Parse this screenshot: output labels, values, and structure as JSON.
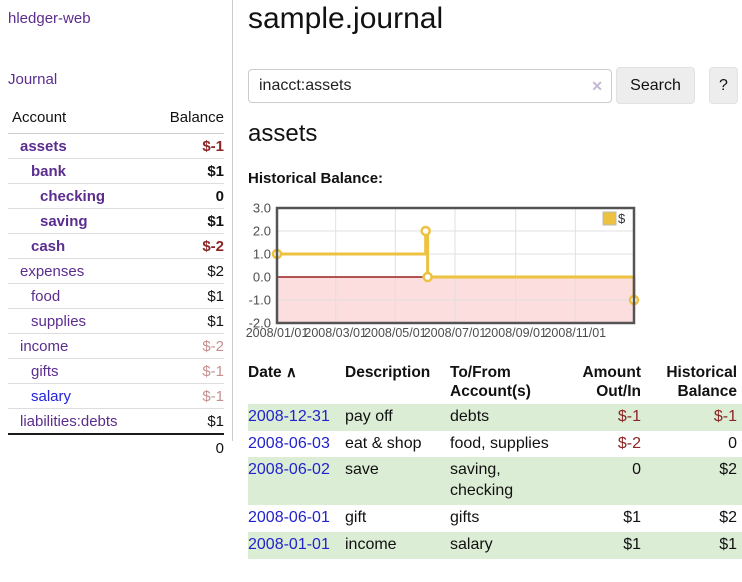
{
  "app": {
    "title": "hledger-web"
  },
  "sidebar": {
    "journal_link": "Journal",
    "table": {
      "account_header": "Account",
      "balance_header": "Balance",
      "rows": [
        {
          "account": "assets",
          "depth": 1,
          "bold": true,
          "balance": "$-1",
          "balance_style": "neg"
        },
        {
          "account": "bank",
          "depth": 2,
          "bold": true,
          "balance": "$1",
          "balance_style": "pos"
        },
        {
          "account": "checking",
          "depth": 3,
          "bold": true,
          "balance": "0",
          "balance_style": "pos"
        },
        {
          "account": "saving",
          "depth": 3,
          "bold": true,
          "balance": "$1",
          "balance_style": "pos"
        },
        {
          "account": "cash",
          "depth": 2,
          "bold": true,
          "balance": "$-2",
          "balance_style": "neg"
        },
        {
          "account": "expenses",
          "depth": 1,
          "bold": false,
          "balance": "$2",
          "balance_style": "pos"
        },
        {
          "account": "food",
          "depth": 2,
          "bold": false,
          "balance": "$1",
          "balance_style": "pos"
        },
        {
          "account": "supplies",
          "depth": 2,
          "bold": false,
          "balance": "$1",
          "balance_style": "pos"
        },
        {
          "account": "income",
          "depth": 1,
          "bold": false,
          "balance": "$-2",
          "balance_style": "neg-faded"
        },
        {
          "account": "gifts",
          "depth": 2,
          "bold": false,
          "balance": "$-1",
          "balance_style": "neg-faded"
        },
        {
          "account": "salary",
          "depth": 2,
          "bold": false,
          "balance": "$-1",
          "balance_style": "neg-faded"
        },
        {
          "account": "liabilities:debts",
          "depth": 1,
          "bold": false,
          "balance": "$1",
          "balance_style": "pos"
        }
      ],
      "total": "0"
    }
  },
  "main": {
    "title": "sample.journal",
    "search": {
      "value": "inacct:assets",
      "clear_icon": "✕",
      "button": "Search",
      "help_button": "?"
    },
    "account_heading": "assets",
    "chart_label": "Historical Balance:"
  },
  "chart_data": {
    "type": "line",
    "step": true,
    "title": "Historical Balance",
    "series": [
      {
        "name": "$",
        "color": "#edc240",
        "points": [
          [
            "2008-01-01",
            1
          ],
          [
            "2008-06-01",
            2
          ],
          [
            "2008-06-03",
            0
          ],
          [
            "2008-12-31",
            -1
          ]
        ]
      }
    ],
    "x_range": [
      "2008-01-01",
      "2008-12-31"
    ],
    "ylim": [
      -2,
      3
    ],
    "y_ticks": [
      -2,
      -1,
      0,
      1,
      2,
      3
    ],
    "x_ticks": [
      {
        "date": "2008-01-01",
        "label": "2008/01/01"
      },
      {
        "date": "2008-03-01",
        "label": "2008/03/01"
      },
      {
        "date": "2008-05-01",
        "label": "2008/05/01"
      },
      {
        "date": "2008-07-01",
        "label": "2008/07/01"
      },
      {
        "date": "2008-09-01",
        "label": "2008/09/01"
      },
      {
        "date": "2008-11-01",
        "label": "2008/11/01"
      }
    ],
    "legend_position": "top-right",
    "grid": true,
    "negative_region_shaded": true
  },
  "register": {
    "headers": {
      "date": "Date",
      "sort_icon": "∧",
      "description": "Description",
      "tofrom": "To/From\nAccount(s)",
      "amount": "Amount\nOut/In",
      "balance": "Historical\nBalance"
    },
    "rows": [
      {
        "date": "2008-12-31",
        "description": "pay off",
        "accounts": "debts",
        "amount": "$-1",
        "balance": "$-1"
      },
      {
        "date": "2008-06-03",
        "description": "eat & shop",
        "accounts": "food, supplies",
        "amount": "$-2",
        "balance": "0"
      },
      {
        "date": "2008-06-02",
        "description": "save",
        "accounts": "saving,\nchecking",
        "amount": "0",
        "balance": "$2"
      },
      {
        "date": "2008-06-01",
        "description": "gift",
        "accounts": "gifts",
        "amount": "$1",
        "balance": "$2"
      },
      {
        "date": "2008-01-01",
        "description": "income",
        "accounts": "salary",
        "amount": "$1",
        "balance": "$1"
      }
    ]
  },
  "colors": {
    "link_purple": "#5b2d8f",
    "link_blue": "#2222dd",
    "negative": "#8b2626",
    "negative_faded": "#c68f8f",
    "row_stripe_green": "#dcedd5",
    "chart_line": "#edc240",
    "chart_negative_fill": "#fcdede",
    "chart_zero_line": "#9a1f1f",
    "chart_border": "#545454",
    "chart_grid": "#e0e0e0",
    "date_link_blue": "#2222cc"
  }
}
